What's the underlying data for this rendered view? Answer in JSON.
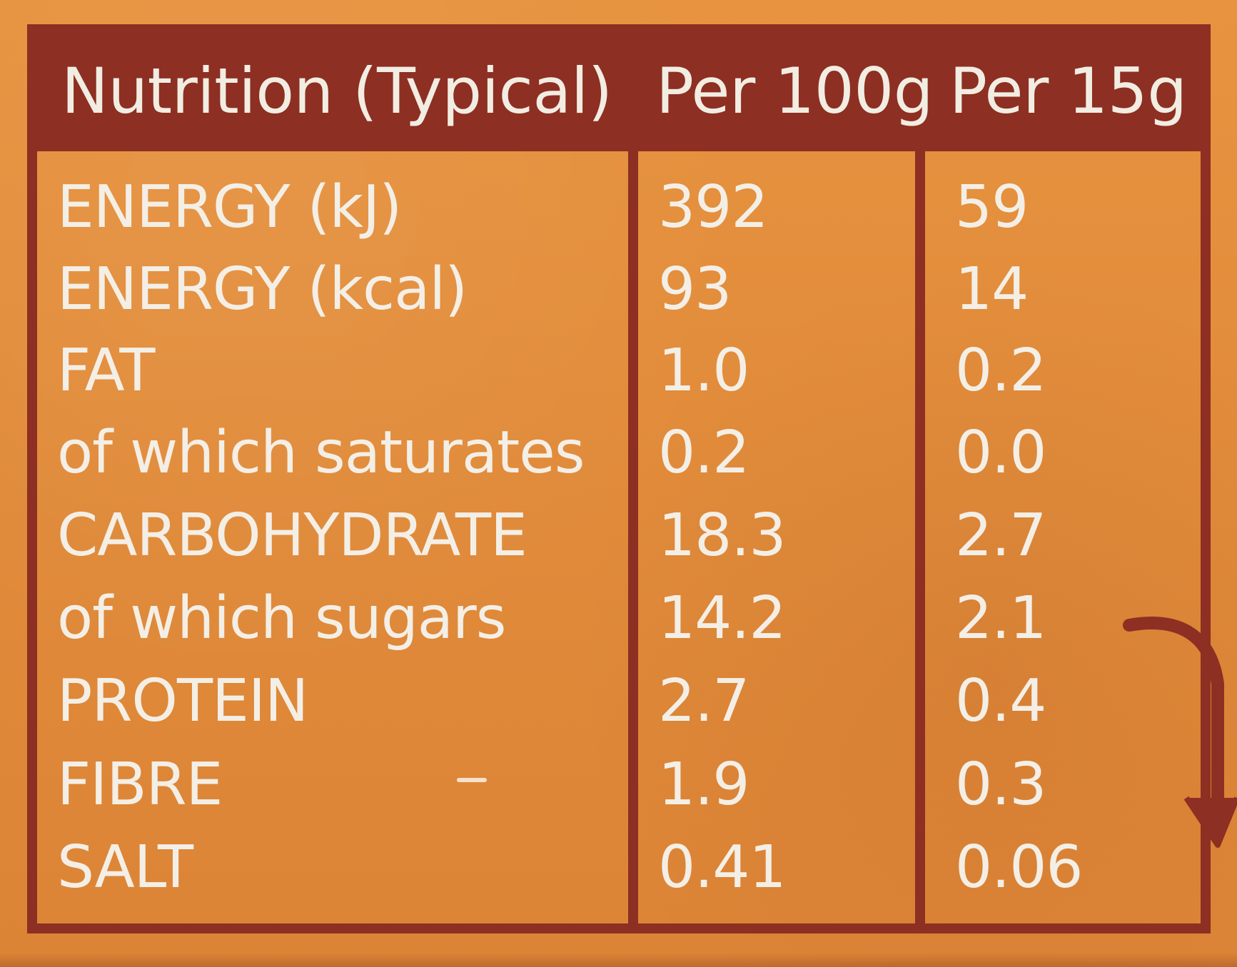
{
  "table": {
    "header": {
      "label": "Nutrition (Typical)",
      "col1": "Per 100g",
      "col2": "Per 15g"
    },
    "rows": [
      {
        "label": "ENERGY (kJ)",
        "col1": "392",
        "col2": "59"
      },
      {
        "label": "ENERGY (kcal)",
        "col1": "93",
        "col2": "14"
      },
      {
        "label": "FAT",
        "col1": "1.0",
        "col2": "0.2"
      },
      {
        "label": "of which saturates",
        "col1": "0.2",
        "col2": "0.0"
      },
      {
        "label": "CARBOHYDRATE",
        "col1": "18.3",
        "col2": "2.7"
      },
      {
        "label": "of which sugars",
        "col1": "14.2",
        "col2": "2.1"
      },
      {
        "label": "PROTEIN",
        "col1": "2.7",
        "col2": "0.4"
      },
      {
        "label": "FIBRE",
        "col1": "1.9",
        "col2": "0.3"
      },
      {
        "label": "SALT",
        "col1": "0.41",
        "col2": "0.06"
      }
    ]
  },
  "icons": {
    "arrow": "curved-arrow-icon"
  },
  "colors": {
    "background": "#e38f3e",
    "border": "#8d2f22",
    "text": "#f4efe6"
  }
}
